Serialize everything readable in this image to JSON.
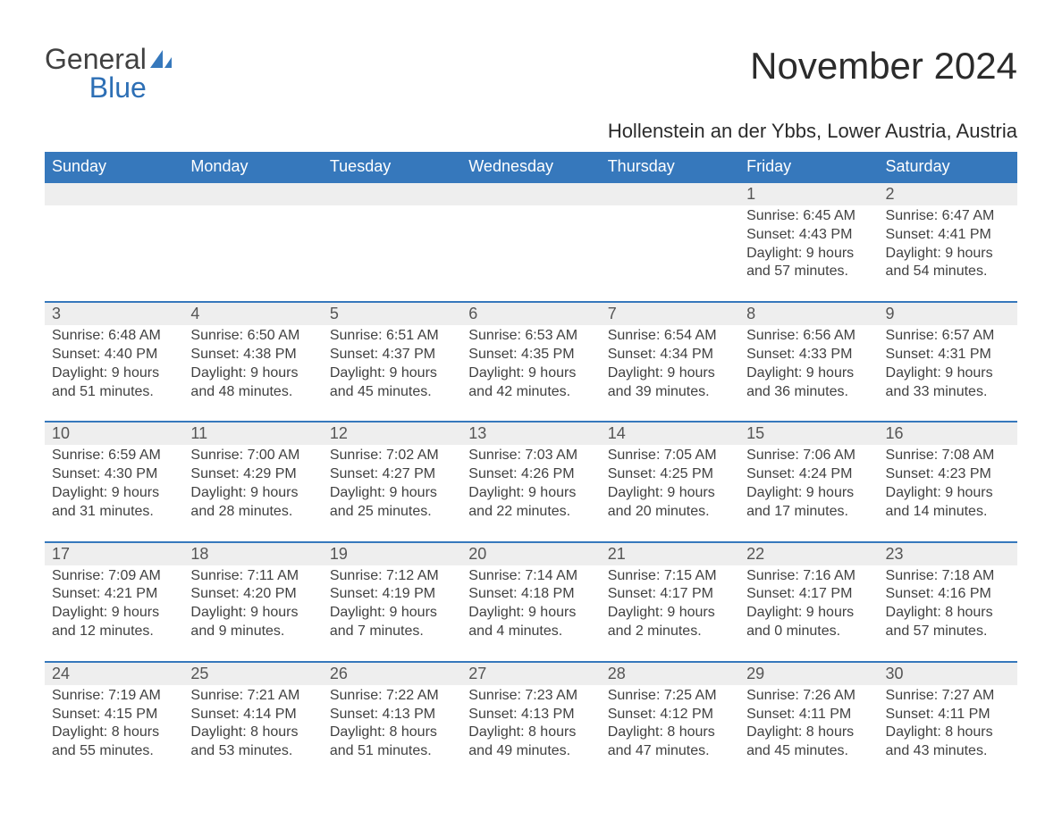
{
  "logo": {
    "line1": "General",
    "line2": "Blue"
  },
  "title": "November 2024",
  "location": "Hollenstein an der Ybbs, Lower Austria, Austria",
  "colors": {
    "header_bg": "#3678bc",
    "header_text": "#ffffff",
    "date_row_bg": "#eeeeee",
    "body_text": "#414141",
    "logo_blue": "#2d6fb5",
    "week_border": "#3678bc"
  },
  "day_names": [
    "Sunday",
    "Monday",
    "Tuesday",
    "Wednesday",
    "Thursday",
    "Friday",
    "Saturday"
  ],
  "weeks": [
    [
      {},
      {},
      {},
      {},
      {},
      {
        "date": "1",
        "sunrise": "6:45 AM",
        "sunset": "4:43 PM",
        "daylight": "9 hours and 57 minutes."
      },
      {
        "date": "2",
        "sunrise": "6:47 AM",
        "sunset": "4:41 PM",
        "daylight": "9 hours and 54 minutes."
      }
    ],
    [
      {
        "date": "3",
        "sunrise": "6:48 AM",
        "sunset": "4:40 PM",
        "daylight": "9 hours and 51 minutes."
      },
      {
        "date": "4",
        "sunrise": "6:50 AM",
        "sunset": "4:38 PM",
        "daylight": "9 hours and 48 minutes."
      },
      {
        "date": "5",
        "sunrise": "6:51 AM",
        "sunset": "4:37 PM",
        "daylight": "9 hours and 45 minutes."
      },
      {
        "date": "6",
        "sunrise": "6:53 AM",
        "sunset": "4:35 PM",
        "daylight": "9 hours and 42 minutes."
      },
      {
        "date": "7",
        "sunrise": "6:54 AM",
        "sunset": "4:34 PM",
        "daylight": "9 hours and 39 minutes."
      },
      {
        "date": "8",
        "sunrise": "6:56 AM",
        "sunset": "4:33 PM",
        "daylight": "9 hours and 36 minutes."
      },
      {
        "date": "9",
        "sunrise": "6:57 AM",
        "sunset": "4:31 PM",
        "daylight": "9 hours and 33 minutes."
      }
    ],
    [
      {
        "date": "10",
        "sunrise": "6:59 AM",
        "sunset": "4:30 PM",
        "daylight": "9 hours and 31 minutes."
      },
      {
        "date": "11",
        "sunrise": "7:00 AM",
        "sunset": "4:29 PM",
        "daylight": "9 hours and 28 minutes."
      },
      {
        "date": "12",
        "sunrise": "7:02 AM",
        "sunset": "4:27 PM",
        "daylight": "9 hours and 25 minutes."
      },
      {
        "date": "13",
        "sunrise": "7:03 AM",
        "sunset": "4:26 PM",
        "daylight": "9 hours and 22 minutes."
      },
      {
        "date": "14",
        "sunrise": "7:05 AM",
        "sunset": "4:25 PM",
        "daylight": "9 hours and 20 minutes."
      },
      {
        "date": "15",
        "sunrise": "7:06 AM",
        "sunset": "4:24 PM",
        "daylight": "9 hours and 17 minutes."
      },
      {
        "date": "16",
        "sunrise": "7:08 AM",
        "sunset": "4:23 PM",
        "daylight": "9 hours and 14 minutes."
      }
    ],
    [
      {
        "date": "17",
        "sunrise": "7:09 AM",
        "sunset": "4:21 PM",
        "daylight": "9 hours and 12 minutes."
      },
      {
        "date": "18",
        "sunrise": "7:11 AM",
        "sunset": "4:20 PM",
        "daylight": "9 hours and 9 minutes."
      },
      {
        "date": "19",
        "sunrise": "7:12 AM",
        "sunset": "4:19 PM",
        "daylight": "9 hours and 7 minutes."
      },
      {
        "date": "20",
        "sunrise": "7:14 AM",
        "sunset": "4:18 PM",
        "daylight": "9 hours and 4 minutes."
      },
      {
        "date": "21",
        "sunrise": "7:15 AM",
        "sunset": "4:17 PM",
        "daylight": "9 hours and 2 minutes."
      },
      {
        "date": "22",
        "sunrise": "7:16 AM",
        "sunset": "4:17 PM",
        "daylight": "9 hours and 0 minutes."
      },
      {
        "date": "23",
        "sunrise": "7:18 AM",
        "sunset": "4:16 PM",
        "daylight": "8 hours and 57 minutes."
      }
    ],
    [
      {
        "date": "24",
        "sunrise": "7:19 AM",
        "sunset": "4:15 PM",
        "daylight": "8 hours and 55 minutes."
      },
      {
        "date": "25",
        "sunrise": "7:21 AM",
        "sunset": "4:14 PM",
        "daylight": "8 hours and 53 minutes."
      },
      {
        "date": "26",
        "sunrise": "7:22 AM",
        "sunset": "4:13 PM",
        "daylight": "8 hours and 51 minutes."
      },
      {
        "date": "27",
        "sunrise": "7:23 AM",
        "sunset": "4:13 PM",
        "daylight": "8 hours and 49 minutes."
      },
      {
        "date": "28",
        "sunrise": "7:25 AM",
        "sunset": "4:12 PM",
        "daylight": "8 hours and 47 minutes."
      },
      {
        "date": "29",
        "sunrise": "7:26 AM",
        "sunset": "4:11 PM",
        "daylight": "8 hours and 45 minutes."
      },
      {
        "date": "30",
        "sunrise": "7:27 AM",
        "sunset": "4:11 PM",
        "daylight": "8 hours and 43 minutes."
      }
    ]
  ],
  "labels": {
    "sunrise_prefix": "Sunrise: ",
    "sunset_prefix": "Sunset: ",
    "daylight_prefix": "Daylight: "
  }
}
